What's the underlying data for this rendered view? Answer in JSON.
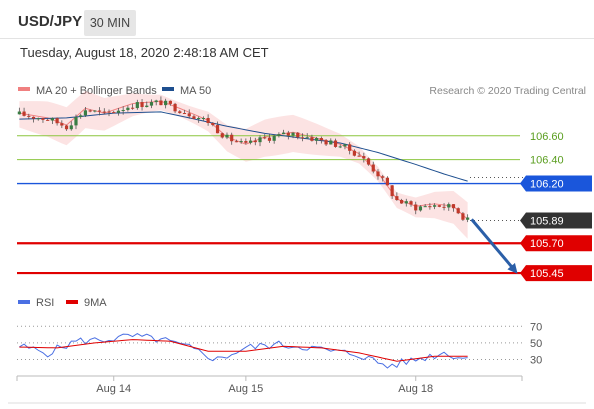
{
  "header": {
    "symbol": "USD/JPY",
    "timeframe": "30 MIN",
    "datetime": "Tuesday, August 18, 2020 2:48:18 AM CET"
  },
  "colors": {
    "bollinger": "#f08080",
    "ma50": "#1e4f8f",
    "candle_up": "#3a7d44",
    "candle_down": "#c0392b",
    "support_line": "#e00000",
    "pivot_line": "#1a56db",
    "resistance_line": "#8cc63f",
    "arrow": "#2b5fa8",
    "rsi": "#4a6fe3",
    "rsi_ma": "#e00000",
    "current_price_tag": "#333333"
  },
  "chart_data": [
    {
      "type": "line",
      "legend": [
        {
          "name": "MA 20 + Bollinger Bands",
          "color": "#f08080"
        },
        {
          "name": "MA 50",
          "color": "#1e4f8f"
        }
      ],
      "legend_position": "top-left",
      "credit": "Research © 2020 Trading Central",
      "ylim": [
        105.35,
        106.9
      ],
      "x_ticks": [
        {
          "label": "Aug 14",
          "index": 20
        },
        {
          "label": "Aug 15",
          "index": 48
        },
        {
          "label": "Aug 18",
          "index": 84
        }
      ],
      "n_candles": 96,
      "price_path": [
        {
          "i": 0,
          "v": 106.78
        },
        {
          "i": 6,
          "v": 106.74
        },
        {
          "i": 10,
          "v": 106.68
        },
        {
          "i": 14,
          "v": 106.82
        },
        {
          "i": 18,
          "v": 106.78
        },
        {
          "i": 24,
          "v": 106.86
        },
        {
          "i": 30,
          "v": 106.88
        },
        {
          "i": 34,
          "v": 106.82
        },
        {
          "i": 40,
          "v": 106.72
        },
        {
          "i": 44,
          "v": 106.58
        },
        {
          "i": 48,
          "v": 106.52
        },
        {
          "i": 52,
          "v": 106.58
        },
        {
          "i": 58,
          "v": 106.62
        },
        {
          "i": 64,
          "v": 106.56
        },
        {
          "i": 68,
          "v": 106.52
        },
        {
          "i": 72,
          "v": 106.44
        },
        {
          "i": 76,
          "v": 106.28
        },
        {
          "i": 80,
          "v": 106.06
        },
        {
          "i": 84,
          "v": 106.0
        },
        {
          "i": 88,
          "v": 106.02
        },
        {
          "i": 92,
          "v": 106.0
        },
        {
          "i": 95,
          "v": 105.89
        }
      ],
      "ma50_path": [
        {
          "i": 0,
          "v": 106.74
        },
        {
          "i": 10,
          "v": 106.75
        },
        {
          "i": 20,
          "v": 106.79
        },
        {
          "i": 30,
          "v": 106.8
        },
        {
          "i": 36,
          "v": 106.75
        },
        {
          "i": 44,
          "v": 106.68
        },
        {
          "i": 52,
          "v": 106.62
        },
        {
          "i": 60,
          "v": 106.58
        },
        {
          "i": 68,
          "v": 106.54
        },
        {
          "i": 76,
          "v": 106.46
        },
        {
          "i": 84,
          "v": 106.36
        },
        {
          "i": 90,
          "v": 106.28
        },
        {
          "i": 95,
          "v": 106.22
        }
      ],
      "levels": [
        {
          "value": 106.6,
          "label": "106.60",
          "kind": "resistance"
        },
        {
          "value": 106.4,
          "label": "106.40",
          "kind": "resistance"
        },
        {
          "value": 106.2,
          "label": "106.20",
          "kind": "pivot"
        },
        {
          "value": 105.89,
          "label": "105.89",
          "kind": "current"
        },
        {
          "value": 105.7,
          "label": "105.70",
          "kind": "support"
        },
        {
          "value": 105.45,
          "label": "105.45",
          "kind": "support"
        }
      ],
      "forecast_arrow": {
        "from": 105.9,
        "to": 105.47
      }
    },
    {
      "type": "line",
      "legend": [
        {
          "name": "RSI",
          "color": "#4a6fe3"
        },
        {
          "name": "9MA",
          "color": "#e00000"
        }
      ],
      "ylim": [
        15,
        80
      ],
      "y_ticks": [
        70,
        50,
        30
      ],
      "rsi_path": [
        {
          "i": 0,
          "v": 46
        },
        {
          "i": 6,
          "v": 38
        },
        {
          "i": 12,
          "v": 52
        },
        {
          "i": 18,
          "v": 54
        },
        {
          "i": 24,
          "v": 58
        },
        {
          "i": 30,
          "v": 54
        },
        {
          "i": 36,
          "v": 44
        },
        {
          "i": 42,
          "v": 30
        },
        {
          "i": 48,
          "v": 44
        },
        {
          "i": 54,
          "v": 48
        },
        {
          "i": 60,
          "v": 46
        },
        {
          "i": 66,
          "v": 40
        },
        {
          "i": 72,
          "v": 36
        },
        {
          "i": 78,
          "v": 22
        },
        {
          "i": 84,
          "v": 30
        },
        {
          "i": 90,
          "v": 38
        },
        {
          "i": 95,
          "v": 31
        }
      ],
      "rsi_ma_path": [
        {
          "i": 0,
          "v": 45
        },
        {
          "i": 8,
          "v": 44
        },
        {
          "i": 16,
          "v": 50
        },
        {
          "i": 24,
          "v": 54
        },
        {
          "i": 32,
          "v": 52
        },
        {
          "i": 40,
          "v": 40
        },
        {
          "i": 48,
          "v": 40
        },
        {
          "i": 56,
          "v": 46
        },
        {
          "i": 64,
          "v": 44
        },
        {
          "i": 72,
          "v": 38
        },
        {
          "i": 80,
          "v": 28
        },
        {
          "i": 88,
          "v": 34
        },
        {
          "i": 95,
          "v": 34
        }
      ]
    }
  ]
}
